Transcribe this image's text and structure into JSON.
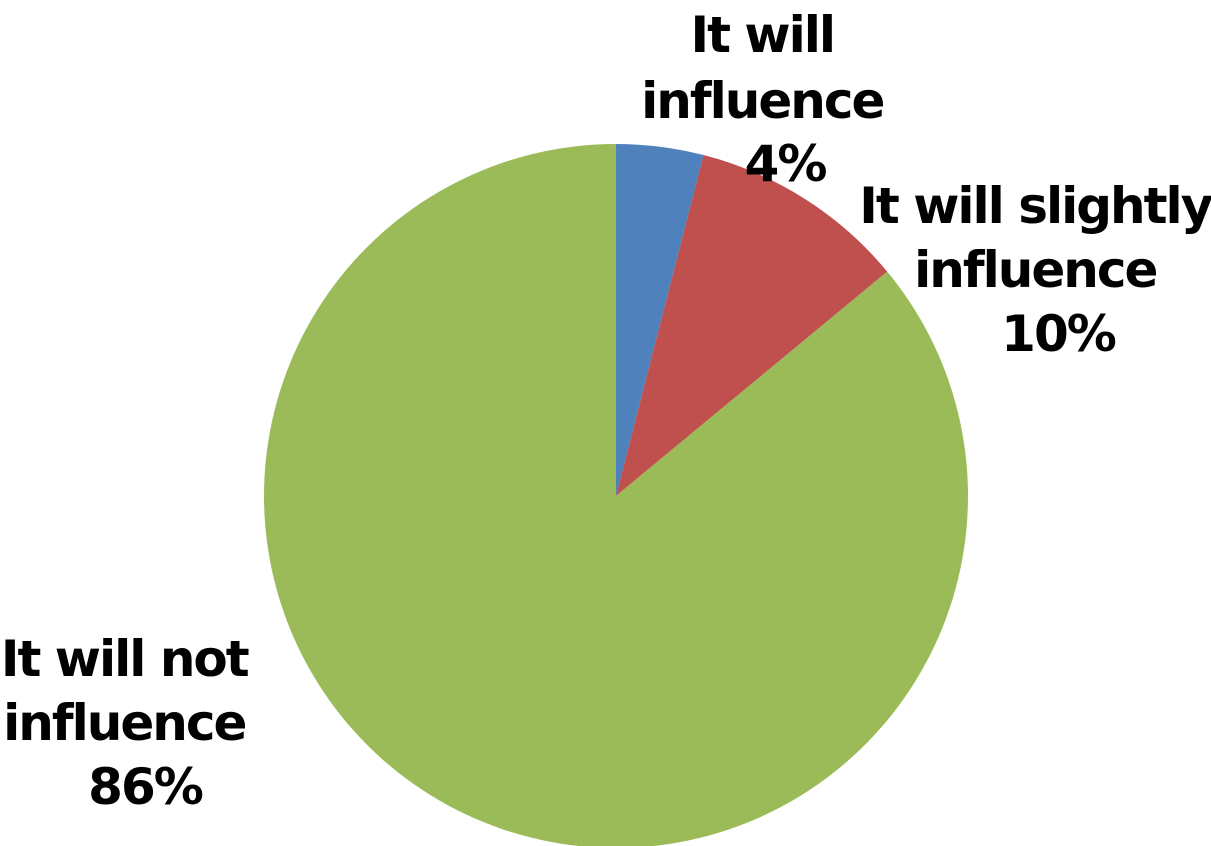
{
  "chart_data": {
    "type": "pie",
    "slices": [
      {
        "label": "It will influence",
        "value": 4,
        "value_label": "4%",
        "color": "#4f81bd"
      },
      {
        "label": "It will slightly influence",
        "value": 10,
        "value_label": "10%",
        "color": "#c0504d"
      },
      {
        "label": "It will not influence",
        "value": 86,
        "value_label": "86%",
        "color": "#9bbb59"
      }
    ],
    "start": "12 o'clock",
    "direction": "clockwise",
    "legend": "none",
    "data_labels": "outside"
  },
  "labels": {
    "slice_0": [
      "It will",
      "influence",
      "4%"
    ],
    "slice_1": [
      "It will slightly",
      "influence",
      "10%"
    ],
    "slice_2": [
      "It will not",
      "influence",
      "86%"
    ]
  }
}
